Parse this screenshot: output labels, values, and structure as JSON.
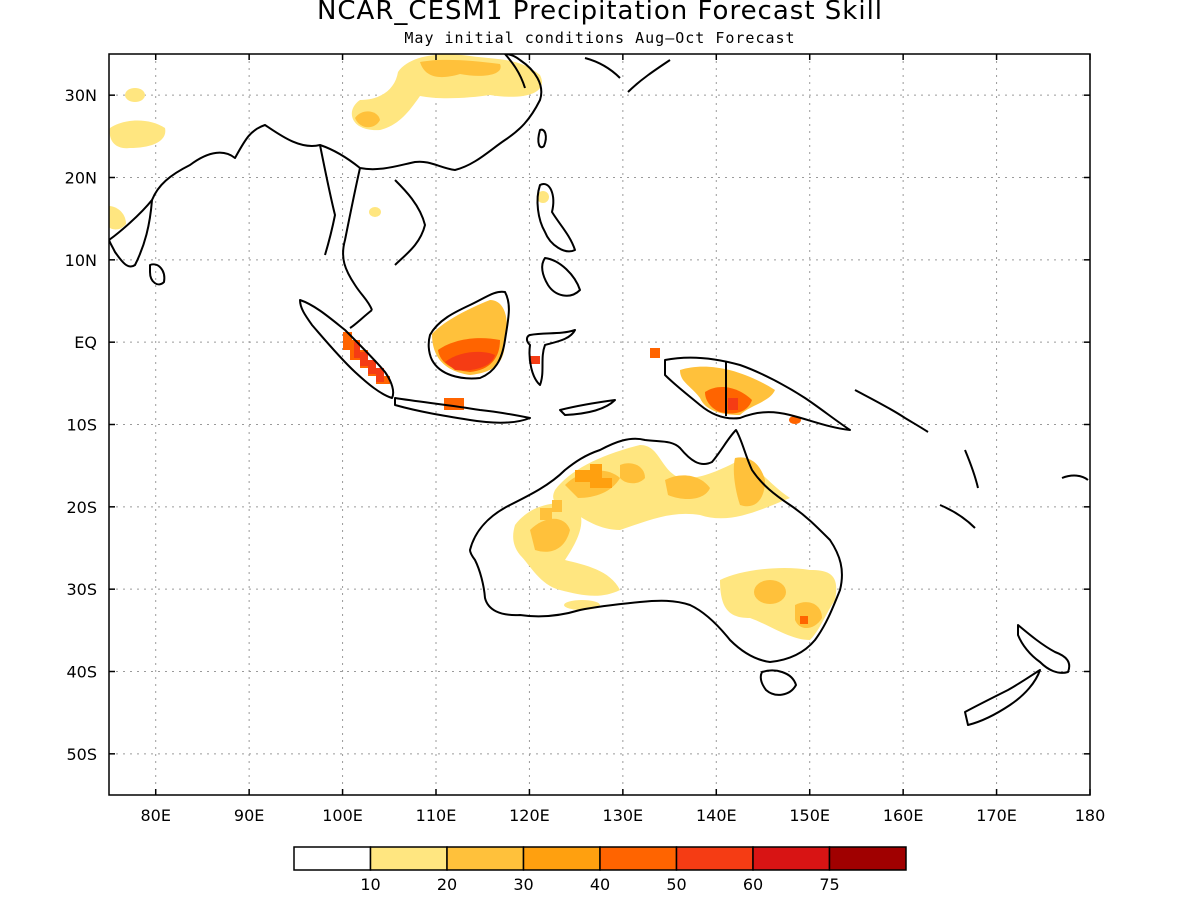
{
  "title": "NCAR_CESM1 Precipitation Forecast Skill",
  "subtitle": "May initial conditions  Aug–Oct Forecast",
  "map": {
    "lon_range": [
      75,
      180
    ],
    "lat_range": [
      -55,
      35
    ],
    "lat_labels": [
      "30N",
      "20N",
      "10N",
      "EQ",
      "10S",
      "20S",
      "30S",
      "40S",
      "50S"
    ],
    "lon_labels": [
      "80E",
      "90E",
      "100E",
      "110E",
      "120E",
      "130E",
      "140E",
      "150E",
      "160E",
      "170E",
      "180"
    ],
    "gridlines": "dotted"
  },
  "colorbar": {
    "colors": [
      "#ffffff",
      "#ffe680",
      "#ffc13b",
      "#ffa00f",
      "#ff6400",
      "#f53c14",
      "#d81414",
      "#a00000"
    ],
    "labels": [
      "10",
      "20",
      "30",
      "40",
      "50",
      "60",
      "75"
    ]
  },
  "colors": {
    "land_outline": "#000000",
    "grid": "#9a9a9a"
  }
}
